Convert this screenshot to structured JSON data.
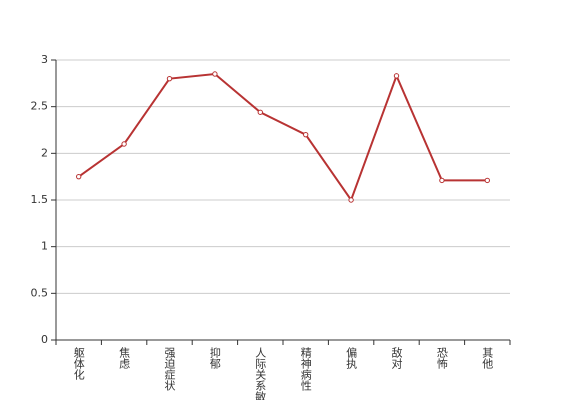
{
  "chart_data": {
    "type": "line",
    "categories": [
      "躯体化",
      "焦虑",
      "强迫症状",
      "抑郁",
      "人际关系敏感",
      "精神病性",
      "偏执",
      "敌对",
      "恐怖",
      "其他"
    ],
    "series": [
      {
        "color": "#b83333",
        "values": [
          1.75,
          2.1,
          2.8,
          2.85,
          2.44,
          2.2,
          1.5,
          2.83,
          1.71,
          1.71
        ]
      }
    ],
    "ylim": [
      0,
      3
    ],
    "yticks": [
      0,
      0.5,
      1,
      1.5,
      2,
      2.5,
      3
    ],
    "grid": true
  }
}
